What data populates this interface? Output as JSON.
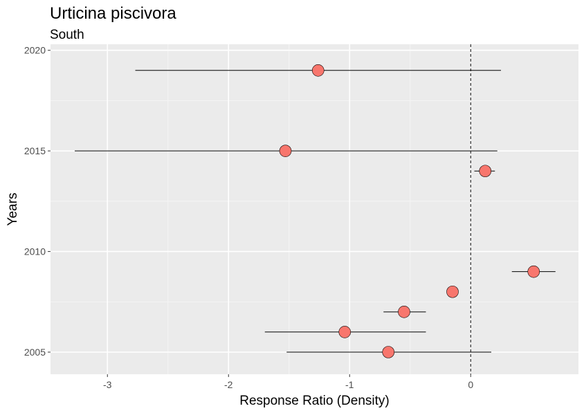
{
  "chart_data": {
    "type": "scatter",
    "title": "Urticina piscivora",
    "subtitle": "South",
    "xlabel": "Response Ratio (Density)",
    "ylabel": "Years",
    "xlim": [
      -3.47,
      0.89
    ],
    "ylim": [
      2003.9,
      2020.3
    ],
    "x_ticks": [
      -3,
      -2,
      -1,
      0
    ],
    "y_ticks": [
      2005,
      2010,
      2015,
      2020
    ],
    "reference_line": {
      "x": 0,
      "style": "dashed"
    },
    "points": [
      {
        "year": 2005,
        "x": -0.68,
        "xmin": -1.52,
        "xmax": 0.17
      },
      {
        "year": 2006,
        "x": -1.04,
        "xmin": -1.7,
        "xmax": -0.37
      },
      {
        "year": 2007,
        "x": -0.55,
        "xmin": -0.72,
        "xmax": -0.37
      },
      {
        "year": 2008,
        "x": -0.15,
        "xmin": null,
        "xmax": null
      },
      {
        "year": 2009,
        "x": 0.52,
        "xmin": 0.34,
        "xmax": 0.7
      },
      {
        "year": 2014,
        "x": 0.12,
        "xmin": 0.03,
        "xmax": 0.2
      },
      {
        "year": 2015,
        "x": -1.53,
        "xmin": -3.27,
        "xmax": 0.22
      },
      {
        "year": 2019,
        "x": -1.26,
        "xmin": -2.77,
        "xmax": 0.25
      }
    ],
    "point_color": "#f8766d",
    "panel_background": "#ebebeb",
    "grid": true
  }
}
